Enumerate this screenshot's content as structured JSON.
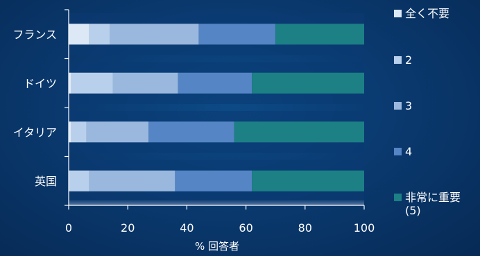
{
  "chart_data": {
    "type": "bar",
    "orientation": "horizontal",
    "stacked": true,
    "categories": [
      "フランス",
      "ドイツ",
      "イタリア",
      "英国"
    ],
    "series": [
      {
        "name": "全く不要",
        "values": [
          7,
          1,
          1,
          0
        ]
      },
      {
        "name": "2",
        "values": [
          7,
          14,
          5,
          7
        ]
      },
      {
        "name": "3",
        "values": [
          30,
          22,
          21,
          29
        ]
      },
      {
        "name": "4",
        "values": [
          26,
          25,
          29,
          26
        ]
      },
      {
        "name": "非常に重要 (5)",
        "values": [
          30,
          38,
          44,
          38
        ]
      }
    ],
    "xlabel": "% 回答者",
    "ylabel": "",
    "xlim": [
      0,
      100
    ],
    "xticks": [
      "0",
      "20",
      "40",
      "60",
      "80",
      "100"
    ],
    "legend_position": "right",
    "colors": [
      "#dce8f6",
      "#b9d0ec",
      "#9ab8de",
      "#5585c4",
      "#1c8085"
    ]
  }
}
